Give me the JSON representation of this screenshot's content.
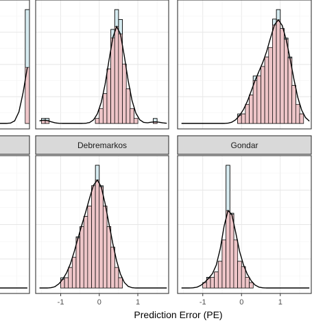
{
  "chart_data": {
    "type": "faceted-histogram-density",
    "xlabel": "Prediction Error (PE)",
    "xlim": [
      -1.65,
      1.8
    ],
    "x_ticks": [
      -1,
      0,
      1
    ],
    "bin_width": 0.1,
    "colors": {
      "histogram_fill_light": "#d6ebf0",
      "histogram_fill_pink": "#eec5c8",
      "bar_outline": "#000000",
      "density_line": "#000000",
      "strip_fill": "#d9d9d9"
    },
    "panels": [
      {
        "name": "",
        "strip_visible": false,
        "bins_start": -1.6,
        "counts": [
          1,
          0,
          0,
          0,
          0,
          0,
          1,
          0,
          0,
          0,
          0,
          2,
          4,
          6,
          9,
          11,
          13,
          16,
          15,
          17,
          10,
          9,
          6,
          4,
          2,
          1,
          0,
          0,
          0,
          0,
          0,
          0,
          0,
          2
        ],
        "density": [
          1,
          0,
          0,
          0,
          0,
          0,
          1,
          0,
          0,
          0,
          0,
          2,
          4,
          6,
          9,
          11,
          13,
          16,
          15,
          17,
          10,
          9,
          6,
          4,
          2,
          1,
          0,
          0,
          0,
          0,
          0,
          0,
          0,
          2
        ]
      },
      {
        "name": "",
        "strip_visible": false,
        "bins_start": -1.6,
        "counts": [
          0,
          1,
          1,
          1,
          0,
          0,
          1,
          0,
          0,
          0,
          0,
          0,
          0,
          1,
          1,
          1,
          1,
          2,
          2,
          3,
          3,
          3,
          4,
          4,
          4,
          5,
          5,
          4,
          4,
          3,
          2,
          1,
          1,
          0
        ],
        "density": [
          0,
          1,
          1,
          1,
          0,
          0,
          1,
          0,
          0,
          0,
          0,
          0,
          0,
          1,
          1,
          1,
          1,
          2,
          2,
          3,
          3,
          3,
          4,
          4,
          4,
          5,
          5,
          4,
          4,
          3,
          2,
          1,
          1,
          0
        ]
      },
      {
        "name": "",
        "strip_visible": false,
        "bins_start": -1.6,
        "counts": [
          0,
          0,
          0,
          0,
          0,
          0,
          0,
          0,
          0,
          0,
          0,
          0,
          0,
          0,
          0,
          0,
          0,
          0,
          0,
          0,
          0,
          0,
          0,
          0,
          0,
          0,
          0,
          0,
          0,
          0,
          0,
          0,
          0,
          0
        ],
        "density": [
          0,
          0,
          0,
          0,
          0,
          0,
          0,
          0,
          0,
          0,
          0,
          0,
          0,
          0,
          0,
          0,
          0,
          0,
          0,
          0,
          0,
          0,
          0,
          0,
          0,
          0,
          0,
          0,
          0,
          0,
          0,
          0,
          0,
          0
        ]
      },
      {
        "name": "",
        "strip_visible": false,
        "bins_start": -1.6,
        "counts": [
          0,
          0,
          0,
          0,
          0,
          0,
          0,
          0,
          0,
          0,
          0,
          1,
          0,
          1,
          1,
          2,
          3,
          5,
          6,
          9,
          13,
          17,
          20,
          22,
          20,
          17,
          11,
          7,
          4,
          2,
          1,
          0,
          0,
          0
        ],
        "density": [
          0,
          0,
          0,
          0,
          0,
          0,
          0,
          0,
          0,
          0,
          0,
          1,
          0,
          1,
          1,
          2,
          3,
          5,
          6,
          9,
          13,
          17,
          20,
          22,
          20,
          17,
          11,
          7,
          4,
          2,
          1,
          0,
          0,
          0
        ]
      },
      {
        "name": "",
        "strip_visible": false,
        "bins_start": -1.6,
        "counts": [
          0,
          0,
          0,
          0,
          0,
          0,
          0,
          0,
          0,
          0,
          0,
          0,
          0,
          0,
          0,
          0,
          0,
          0,
          0,
          0,
          0,
          0,
          0,
          0,
          0,
          0,
          0,
          0,
          0,
          0,
          0,
          0,
          0,
          0
        ],
        "density": [
          0,
          0,
          0,
          0,
          0,
          0,
          0,
          0,
          0,
          0,
          0,
          0,
          0,
          0,
          0,
          0,
          0,
          0,
          0,
          0,
          0,
          0,
          0,
          0,
          0,
          0,
          0,
          0,
          0,
          0,
          0,
          0,
          0,
          0
        ]
      },
      {
        "name": "",
        "strip_visible": false,
        "bins_start": -1.6,
        "counts": [
          0,
          0,
          0,
          0,
          0,
          0,
          0,
          0,
          0,
          0,
          0,
          0,
          0,
          0,
          0,
          0,
          0,
          0,
          0,
          0,
          0,
          0,
          0,
          0,
          0,
          0,
          0,
          0,
          0,
          0,
          0,
          0,
          0,
          0
        ],
        "density": [
          0,
          0,
          0,
          0,
          0,
          0,
          0,
          0,
          0,
          0,
          0,
          0,
          0,
          0,
          0,
          0,
          0,
          0,
          0,
          0,
          0,
          0,
          0,
          0,
          0,
          0,
          0,
          0,
          0,
          0,
          0,
          0,
          0,
          0
        ]
      },
      {
        "name": "",
        "strip_visible": true,
        "bins_start": -1.6,
        "counts": [
          0,
          0,
          0,
          0,
          0,
          0,
          0,
          0,
          0,
          0,
          0,
          0,
          0,
          0,
          0,
          0,
          0,
          0,
          0,
          0,
          0,
          0,
          0,
          0,
          0,
          0,
          0,
          0,
          0,
          0,
          0,
          0,
          0,
          0
        ],
        "density": [
          0,
          0,
          0,
          0,
          0,
          0,
          0,
          0,
          0,
          0,
          0,
          0,
          0,
          0,
          0,
          0,
          0,
          0,
          0,
          0,
          0,
          0,
          0,
          0,
          0,
          0,
          0,
          0,
          0,
          0,
          0,
          0,
          0,
          0
        ]
      },
      {
        "name": "Debremarkos",
        "strip_visible": true,
        "bins_start": -1.6,
        "counts": [
          0,
          0,
          0,
          0,
          0,
          0,
          0,
          0,
          0,
          0,
          0,
          0,
          0,
          0,
          0,
          0,
          0,
          0,
          0,
          0,
          0,
          0,
          0,
          0,
          0,
          0,
          0,
          0,
          0,
          0,
          0,
          0,
          0,
          0
        ],
        "density": [
          0,
          0,
          0,
          0,
          0,
          0,
          0,
          0,
          0,
          0,
          0,
          0,
          0,
          0,
          0,
          0,
          0,
          0,
          0,
          0,
          0,
          0,
          0,
          0,
          0,
          0,
          0,
          0,
          0,
          0,
          0,
          0,
          0,
          0
        ]
      },
      {
        "name": "Gondar",
        "strip_visible": true,
        "bins_start": -1.6,
        "counts": [
          0,
          0,
          0,
          0,
          0,
          0,
          0,
          0,
          0,
          0,
          0,
          0,
          0,
          0,
          0,
          0,
          0,
          0,
          0,
          0,
          0,
          0,
          0,
          0,
          0,
          0,
          0,
          0,
          0,
          0,
          0,
          0,
          0,
          0
        ],
        "density": [
          0,
          0,
          0,
          0,
          0,
          0,
          0,
          0,
          0,
          0,
          0,
          0,
          0,
          0,
          0,
          0,
          0,
          0,
          0,
          0,
          0,
          0,
          0,
          0,
          0,
          0,
          0,
          0,
          0,
          0,
          0,
          0,
          0,
          0
        ]
      }
    ]
  }
}
